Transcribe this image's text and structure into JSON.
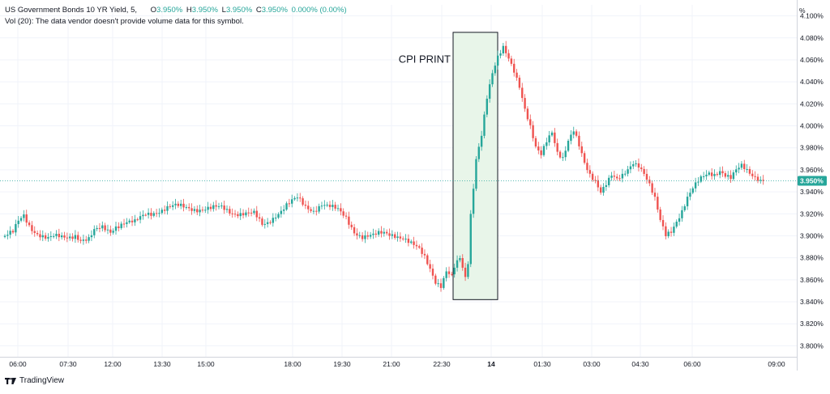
{
  "legend": {
    "symbol": "US Government Bonds 10 YR Yield, 5,",
    "open_label": "O",
    "open": "3.950%",
    "high_label": "H",
    "high": "3.950%",
    "low_label": "L",
    "low": "3.950%",
    "close_label": "C",
    "close": "3.950%",
    "change": "0.000% (0.00%)",
    "volume_note": "Vol (20): The data vendor doesn't provide volume data for this symbol."
  },
  "footer": {
    "brand": "TradingView"
  },
  "axis_unit": "%",
  "colors": {
    "up": "#26a69a",
    "down": "#ef5350",
    "highlight_fill": "#e8f5e9",
    "price_badge": "#26a69a"
  },
  "chart_data": {
    "type": "candlestick",
    "title": "",
    "y_unit": "%",
    "ylim": [
      3.79,
      4.11
    ],
    "y_ticks": [
      "3.800%",
      "3.820%",
      "3.840%",
      "3.860%",
      "3.880%",
      "3.900%",
      "3.920%",
      "3.940%",
      "3.960%",
      "3.980%",
      "4.000%",
      "4.020%",
      "4.040%",
      "4.060%",
      "4.080%",
      "4.100%"
    ],
    "x_ticks": [
      "06:00",
      "07:30",
      "12:00",
      "13:30",
      "15:00",
      "18:00",
      "19:30",
      "21:00",
      "22:30",
      "14",
      "01:30",
      "03:00",
      "04:30",
      "06:00",
      "09:00"
    ],
    "last_price_label": "3.950%",
    "last_price": 3.95,
    "annotation": {
      "text": "CPI PRINT",
      "y_range": [
        3.842,
        4.085
      ]
    },
    "path": [
      [
        0,
        3.9
      ],
      [
        3,
        3.902
      ],
      [
        5,
        3.912
      ],
      [
        7,
        3.918
      ],
      [
        9,
        3.91
      ],
      [
        11,
        3.905
      ],
      [
        14,
        3.9
      ],
      [
        16,
        3.897
      ],
      [
        18,
        3.898
      ],
      [
        21,
        3.898
      ],
      [
        23,
        3.899
      ],
      [
        26,
        3.902
      ],
      [
        28,
        3.897
      ],
      [
        31,
        3.896
      ],
      [
        33,
        3.903
      ],
      [
        36,
        3.907
      ],
      [
        39,
        3.905
      ],
      [
        41,
        3.91
      ],
      [
        44,
        3.912
      ],
      [
        48,
        3.911
      ],
      [
        52,
        3.92
      ],
      [
        56,
        3.923
      ],
      [
        60,
        3.925
      ],
      [
        64,
        3.926
      ],
      [
        68,
        3.926
      ],
      [
        72,
        3.925
      ],
      [
        76,
        3.924
      ],
      [
        80,
        3.925
      ],
      [
        84,
        3.922
      ],
      [
        88,
        3.921
      ],
      [
        92,
        3.919
      ],
      [
        95,
        3.909
      ],
      [
        97,
        3.912
      ],
      [
        100,
        3.92
      ],
      [
        104,
        3.928
      ],
      [
        108,
        3.933
      ],
      [
        111,
        3.926
      ],
      [
        114,
        3.924
      ],
      [
        117,
        3.93
      ],
      [
        120,
        3.926
      ],
      [
        123,
        3.922
      ],
      [
        126,
        3.916
      ],
      [
        129,
        3.905
      ],
      [
        132,
        3.9
      ],
      [
        136,
        3.899
      ],
      [
        140,
        3.902
      ],
      [
        144,
        3.902
      ],
      [
        147,
        3.899
      ],
      [
        150,
        3.892
      ],
      [
        153,
        3.886
      ],
      [
        155,
        3.88
      ],
      [
        157,
        3.871
      ],
      [
        159,
        3.86
      ],
      [
        161,
        3.856
      ],
      [
        163,
        3.868
      ],
      [
        165,
        3.862
      ],
      [
        166,
        3.87
      ],
      [
        168,
        3.878
      ],
      [
        170,
        3.861
      ],
      [
        171,
        3.876
      ],
      [
        172,
        3.92
      ],
      [
        174,
        3.972
      ],
      [
        176,
        3.994
      ],
      [
        178,
        4.026
      ],
      [
        180,
        4.046
      ],
      [
        182,
        4.06
      ],
      [
        184,
        4.07
      ],
      [
        186,
        4.062
      ],
      [
        188,
        4.052
      ],
      [
        190,
        4.038
      ],
      [
        192,
        4.016
      ],
      [
        194,
        3.998
      ],
      [
        196,
        3.978
      ],
      [
        198,
        3.972
      ],
      [
        200,
        3.986
      ],
      [
        202,
        3.996
      ],
      [
        204,
        3.978
      ],
      [
        206,
        3.972
      ],
      [
        208,
        3.986
      ],
      [
        210,
        3.994
      ],
      [
        212,
        3.98
      ],
      [
        214,
        3.965
      ],
      [
        216,
        3.956
      ],
      [
        218,
        3.952
      ],
      [
        220,
        3.942
      ],
      [
        222,
        3.948
      ],
      [
        224,
        3.954
      ],
      [
        226,
        3.949
      ],
      [
        228,
        3.953
      ],
      [
        230,
        3.96
      ],
      [
        232,
        3.968
      ],
      [
        234,
        3.966
      ],
      [
        236,
        3.958
      ],
      [
        238,
        3.946
      ],
      [
        240,
        3.932
      ],
      [
        242,
        3.912
      ],
      [
        244,
        3.9
      ],
      [
        246,
        3.905
      ],
      [
        248,
        3.915
      ],
      [
        250,
        3.924
      ],
      [
        252,
        3.935
      ],
      [
        254,
        3.942
      ],
      [
        256,
        3.948
      ],
      [
        258,
        3.953
      ],
      [
        260,
        3.957
      ],
      [
        262,
        3.957
      ],
      [
        264,
        3.961
      ],
      [
        266,
        3.956
      ],
      [
        268,
        3.952
      ],
      [
        270,
        3.958
      ],
      [
        272,
        3.962
      ],
      [
        274,
        3.959
      ],
      [
        276,
        3.956
      ],
      [
        278,
        3.954
      ],
      [
        280,
        3.95
      ]
    ]
  }
}
